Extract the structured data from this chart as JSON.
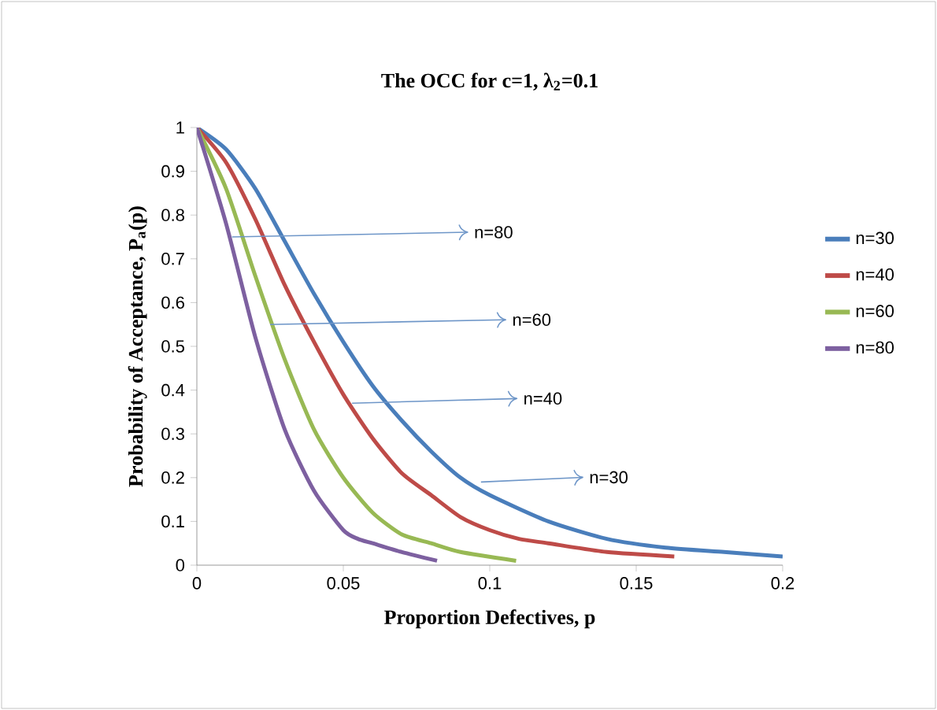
{
  "chart_data": {
    "type": "line",
    "title": "The OCC for c=1, λ$_{2}$=0.1",
    "xlabel": "Proportion Defectives, p",
    "ylabel": "Probability of Acceptance, P$_{a}$(p)",
    "xlim": [
      0,
      0.2
    ],
    "ylim": [
      0,
      1
    ],
    "xticks": [
      0,
      0.05,
      0.1,
      0.15,
      0.2
    ],
    "yticks": [
      0,
      0.1,
      0.2,
      0.3,
      0.4,
      0.5,
      0.6,
      0.7,
      0.8,
      0.9,
      1
    ],
    "legend": "right",
    "marker": "none",
    "line_style": "solid",
    "grid": false,
    "series": [
      {
        "name": "n=30",
        "color": "#4a7ebb",
        "x": [
          0,
          0.01,
          0.02,
          0.03,
          0.04,
          0.05,
          0.06,
          0.07,
          0.08,
          0.09,
          0.1,
          0.12,
          0.14,
          0.16,
          0.18,
          0.2
        ],
        "values": [
          1,
          0.95,
          0.86,
          0.74,
          0.62,
          0.51,
          0.41,
          0.33,
          0.26,
          0.2,
          0.16,
          0.1,
          0.06,
          0.04,
          0.03,
          0.02
        ]
      },
      {
        "name": "n=40",
        "color": "#be4b48",
        "x": [
          0,
          0.01,
          0.02,
          0.03,
          0.04,
          0.05,
          0.06,
          0.07,
          0.08,
          0.09,
          0.1,
          0.11,
          0.12,
          0.14,
          0.163
        ],
        "values": [
          1,
          0.92,
          0.79,
          0.64,
          0.51,
          0.39,
          0.29,
          0.21,
          0.16,
          0.11,
          0.08,
          0.06,
          0.05,
          0.03,
          0.02
        ]
      },
      {
        "name": "n=60",
        "color": "#98b954",
        "x": [
          0,
          0.01,
          0.02,
          0.03,
          0.04,
          0.05,
          0.06,
          0.07,
          0.08,
          0.09,
          0.109
        ],
        "values": [
          1,
          0.86,
          0.66,
          0.47,
          0.31,
          0.2,
          0.12,
          0.07,
          0.05,
          0.03,
          0.01
        ]
      },
      {
        "name": "n=80",
        "color": "#7d60a0",
        "x": [
          0,
          0.01,
          0.02,
          0.03,
          0.04,
          0.05,
          0.055,
          0.06,
          0.07,
          0.082
        ],
        "values": [
          1,
          0.78,
          0.52,
          0.31,
          0.17,
          0.08,
          0.06,
          0.05,
          0.03,
          0.01
        ]
      }
    ],
    "annotations": [
      {
        "text": "n=80",
        "x": 0.012,
        "y": 0.75
      },
      {
        "text": "n=60",
        "x": 0.025,
        "y": 0.55
      },
      {
        "text": "n=40",
        "x": 0.053,
        "y": 0.37
      },
      {
        "text": "n=30",
        "x": 0.097,
        "y": 0.19
      }
    ]
  }
}
